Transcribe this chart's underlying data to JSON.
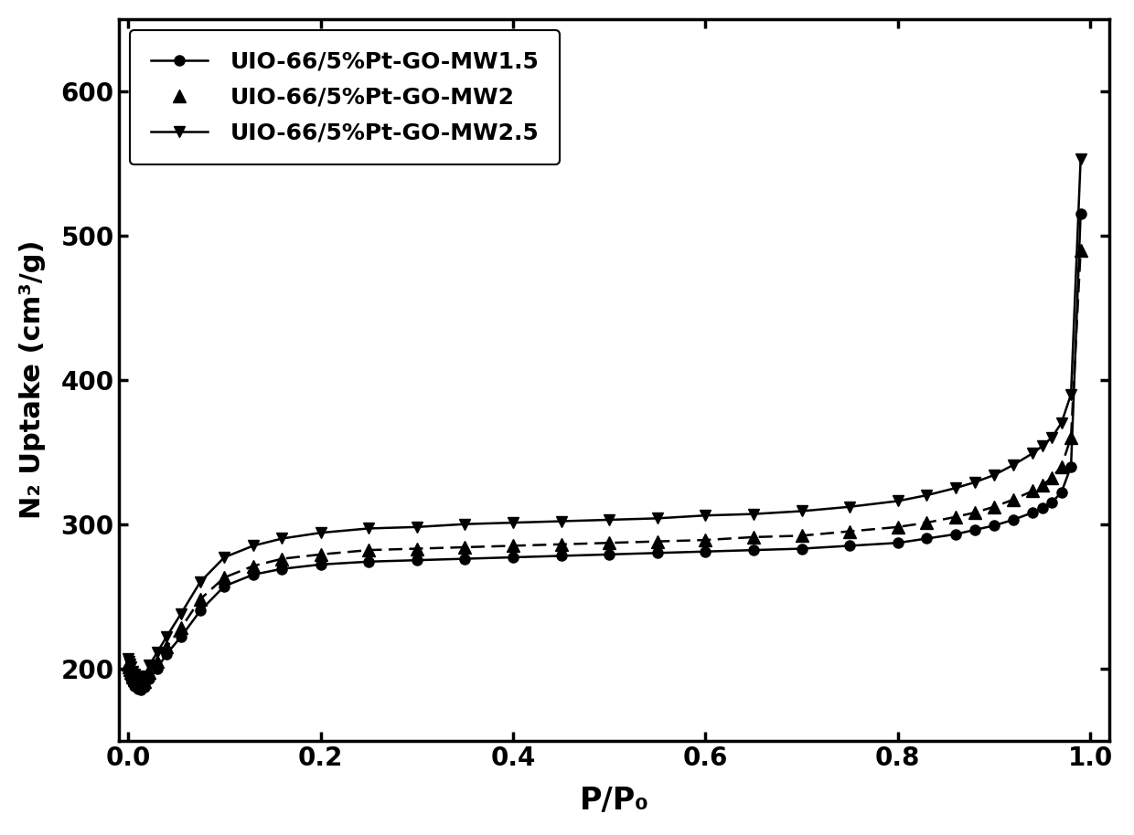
{
  "title": "",
  "xlabel": "P/P₀",
  "ylabel": "N₂ Uptake (cm³/g)",
  "xlim": [
    -0.01,
    1.02
  ],
  "ylim": [
    150,
    650
  ],
  "yticks": [
    200,
    300,
    400,
    500,
    600
  ],
  "xticks": [
    0.0,
    0.2,
    0.4,
    0.6,
    0.8,
    1.0
  ],
  "legend_labels": [
    "UIO-66/5%Pt-GO-MW1.5",
    "UIO-66/5%Pt-GO-MW2",
    "UIO-66/5%Pt-GO-MW2.5"
  ],
  "series": {
    "MW1.5": {
      "x": [
        0.0,
        0.001,
        0.002,
        0.003,
        0.005,
        0.007,
        0.01,
        0.013,
        0.017,
        0.022,
        0.03,
        0.04,
        0.055,
        0.075,
        0.1,
        0.13,
        0.16,
        0.2,
        0.25,
        0.3,
        0.35,
        0.4,
        0.45,
        0.5,
        0.55,
        0.6,
        0.65,
        0.7,
        0.75,
        0.8,
        0.83,
        0.86,
        0.88,
        0.9,
        0.92,
        0.94,
        0.95,
        0.96,
        0.97,
        0.98,
        0.99
      ],
      "y": [
        200,
        198,
        196,
        193,
        190,
        188,
        186,
        185,
        187,
        193,
        200,
        210,
        222,
        240,
        257,
        265,
        269,
        272,
        274,
        275,
        276,
        277,
        278,
        279,
        280,
        281,
        282,
        283,
        285,
        287,
        290,
        293,
        296,
        299,
        303,
        308,
        311,
        315,
        322,
        340,
        515
      ]
    },
    "MW2": {
      "x": [
        0.0,
        0.001,
        0.002,
        0.003,
        0.005,
        0.007,
        0.01,
        0.013,
        0.017,
        0.022,
        0.03,
        0.04,
        0.055,
        0.075,
        0.1,
        0.13,
        0.16,
        0.2,
        0.25,
        0.3,
        0.35,
        0.4,
        0.45,
        0.5,
        0.55,
        0.6,
        0.65,
        0.7,
        0.75,
        0.8,
        0.83,
        0.86,
        0.88,
        0.9,
        0.92,
        0.94,
        0.95,
        0.96,
        0.97,
        0.98,
        0.99
      ],
      "y": [
        203,
        201,
        199,
        197,
        194,
        192,
        190,
        189,
        191,
        197,
        205,
        215,
        228,
        248,
        263,
        271,
        276,
        279,
        282,
        283,
        284,
        285,
        286,
        287,
        288,
        289,
        291,
        292,
        295,
        298,
        301,
        305,
        308,
        312,
        317,
        323,
        327,
        332,
        340,
        360,
        490
      ]
    },
    "MW2.5": {
      "x": [
        0.0,
        0.001,
        0.002,
        0.003,
        0.005,
        0.007,
        0.01,
        0.013,
        0.017,
        0.022,
        0.03,
        0.04,
        0.055,
        0.075,
        0.1,
        0.13,
        0.16,
        0.2,
        0.25,
        0.3,
        0.35,
        0.4,
        0.45,
        0.5,
        0.55,
        0.6,
        0.65,
        0.7,
        0.75,
        0.8,
        0.83,
        0.86,
        0.88,
        0.9,
        0.92,
        0.94,
        0.95,
        0.96,
        0.97,
        0.98,
        0.99
      ],
      "y": [
        207,
        205,
        203,
        201,
        198,
        196,
        194,
        193,
        195,
        202,
        211,
        222,
        238,
        260,
        277,
        285,
        290,
        294,
        297,
        298,
        300,
        301,
        302,
        303,
        304,
        306,
        307,
        309,
        312,
        316,
        320,
        325,
        329,
        334,
        341,
        349,
        354,
        360,
        370,
        390,
        553
      ]
    }
  }
}
